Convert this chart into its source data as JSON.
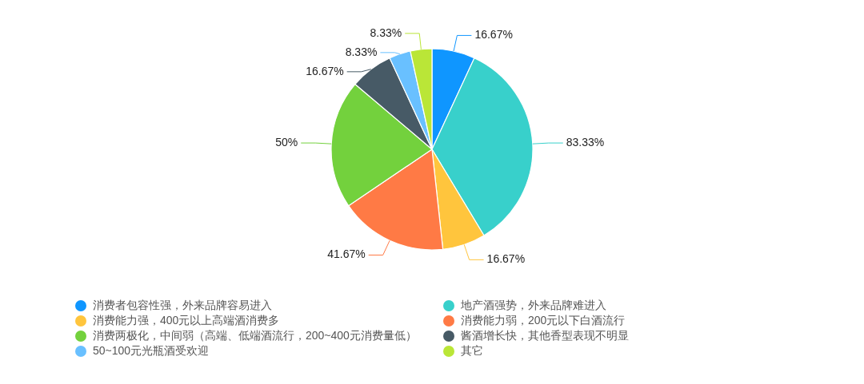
{
  "chart_data": {
    "type": "pie",
    "categories": [
      "消费者包容性强，外来品牌容易进入",
      "地产酒强势，外来品牌难进入",
      "消费能力强，400元以上高端酒消费多",
      "消费能力弱，200元以下白酒流行",
      "消费两极化，中间弱（高端、低端酒流行，200~400元消费量低）",
      "酱酒增长快，其他香型表现不明显",
      "50~100元光瓶酒受欢迎",
      "其它"
    ],
    "values": [
      16.67,
      83.33,
      16.67,
      41.67,
      50,
      16.67,
      8.33,
      8.33
    ],
    "colors": [
      "#0f96ff",
      "#38d0cb",
      "#ffc53d",
      "#ff7a45",
      "#73d13d",
      "#475a66",
      "#69c0ff",
      "#bae637"
    ],
    "value_labels": [
      "16.67%",
      "83.33%",
      "16.67%",
      "41.67%",
      "50%",
      "16.67%",
      "8.33%",
      "8.33%"
    ],
    "legend": "bottom"
  }
}
